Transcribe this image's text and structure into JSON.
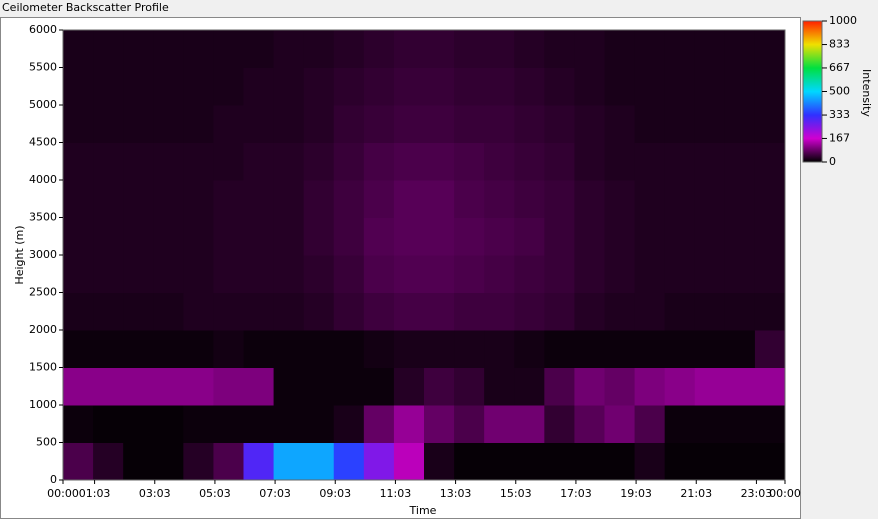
{
  "chart_data": {
    "type": "heatmap",
    "title": "Ceilometer Backscatter Profile",
    "x_label": "Time",
    "y_label": "Height (m)",
    "colorbar_label": "Intensity",
    "xlim": [
      0,
      24
    ],
    "xticks": [
      {
        "value": 0,
        "label": "00:00"
      },
      {
        "value": 1.05,
        "label": "01:03"
      },
      {
        "value": 3.05,
        "label": "03:03"
      },
      {
        "value": 5.05,
        "label": "05:03"
      },
      {
        "value": 7.05,
        "label": "07:03"
      },
      {
        "value": 9.05,
        "label": "09:03"
      },
      {
        "value": 11.05,
        "label": "11:03"
      },
      {
        "value": 13.05,
        "label": "13:03"
      },
      {
        "value": 15.05,
        "label": "15:03"
      },
      {
        "value": 17.05,
        "label": "17:03"
      },
      {
        "value": 19.05,
        "label": "19:03"
      },
      {
        "value": 21.05,
        "label": "21:03"
      },
      {
        "value": 23.05,
        "label": "23:03"
      },
      {
        "value": 24,
        "label": "00:00"
      }
    ],
    "ylim": [
      0,
      6000
    ],
    "yticks": [
      0,
      500,
      1000,
      1500,
      2000,
      2500,
      3000,
      3500,
      4000,
      4500,
      5000,
      5500,
      6000
    ],
    "zlim": [
      0,
      1000
    ],
    "zticks": [
      0,
      167,
      333,
      500,
      667,
      833,
      1000
    ],
    "colormap": [
      "#000000",
      "#d000d0",
      "#3030ff",
      "#00d8ff",
      "#00e040",
      "#f0e000",
      "#ff2000"
    ],
    "z": [
      [
        60,
        30,
        5,
        5,
        30,
        60,
        300,
        450,
        450,
        350,
        250,
        150,
        20,
        5,
        5,
        5,
        5,
        5,
        5,
        20,
        5,
        5,
        5,
        5
      ],
      [
        10,
        5,
        5,
        5,
        10,
        10,
        10,
        10,
        10,
        20,
        80,
        120,
        80,
        60,
        90,
        90,
        40,
        70,
        90,
        60,
        10,
        10,
        10,
        10
      ],
      [
        110,
        110,
        110,
        110,
        110,
        100,
        100,
        10,
        10,
        10,
        10,
        30,
        50,
        40,
        20,
        20,
        60,
        90,
        80,
        100,
        110,
        120,
        120,
        120
      ],
      [
        10,
        10,
        10,
        10,
        10,
        15,
        10,
        10,
        10,
        10,
        15,
        20,
        20,
        20,
        20,
        15,
        10,
        10,
        10,
        10,
        10,
        10,
        10,
        40
      ],
      [
        20,
        20,
        20,
        20,
        25,
        25,
        25,
        25,
        30,
        40,
        50,
        55,
        55,
        50,
        50,
        45,
        40,
        30,
        25,
        25,
        20,
        20,
        20,
        20
      ],
      [
        25,
        25,
        25,
        25,
        25,
        30,
        30,
        30,
        35,
        45,
        60,
        65,
        65,
        60,
        55,
        50,
        45,
        35,
        30,
        25,
        25,
        25,
        25,
        25
      ],
      [
        25,
        25,
        25,
        25,
        25,
        30,
        30,
        30,
        40,
        50,
        65,
        70,
        70,
        65,
        60,
        55,
        45,
        35,
        30,
        25,
        25,
        25,
        25,
        25
      ],
      [
        25,
        25,
        25,
        25,
        25,
        30,
        30,
        30,
        40,
        50,
        60,
        70,
        70,
        60,
        55,
        50,
        45,
        35,
        30,
        25,
        25,
        25,
        25,
        25
      ],
      [
        25,
        25,
        25,
        25,
        25,
        25,
        30,
        30,
        35,
        45,
        55,
        60,
        60,
        55,
        50,
        45,
        40,
        30,
        25,
        25,
        25,
        25,
        25,
        25
      ],
      [
        20,
        20,
        20,
        20,
        20,
        25,
        25,
        25,
        30,
        40,
        45,
        50,
        50,
        45,
        45,
        40,
        35,
        30,
        25,
        20,
        20,
        20,
        20,
        20
      ],
      [
        20,
        20,
        20,
        20,
        20,
        20,
        25,
        25,
        30,
        35,
        40,
        45,
        45,
        40,
        40,
        35,
        30,
        25,
        20,
        20,
        20,
        20,
        20,
        20
      ],
      [
        20,
        20,
        20,
        20,
        20,
        20,
        20,
        25,
        25,
        30,
        35,
        40,
        40,
        35,
        35,
        30,
        25,
        25,
        20,
        20,
        20,
        20,
        20,
        20
      ]
    ]
  }
}
